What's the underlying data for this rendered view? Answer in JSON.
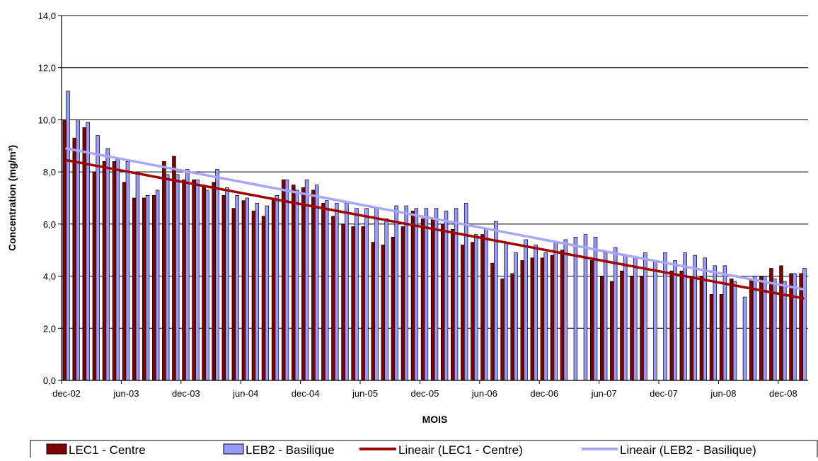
{
  "chart_data": {
    "type": "bar",
    "title": "",
    "xlabel": "MOIS",
    "ylabel": "Concentration (mg/m³)",
    "ylim": [
      0,
      14
    ],
    "yticks": [
      "0,0",
      "2,0",
      "4,0",
      "6,0",
      "8,0",
      "10,0",
      "12,0",
      "14,0"
    ],
    "grid": true,
    "legend_position": "bottom",
    "x_tick_labels": [
      "dec-02",
      "jun-03",
      "dec-03",
      "jun-04",
      "dec-04",
      "jun-05",
      "dec-05",
      "jun-06",
      "dec-06",
      "jun-07",
      "dec-07",
      "jun-08",
      "dec-08"
    ],
    "x_tick_every": 6,
    "series": [
      {
        "name": "LEC1 - Centre",
        "color": "#800000",
        "values": [
          10.0,
          9.3,
          9.7,
          8.0,
          8.4,
          8.4,
          7.6,
          7.0,
          7.0,
          7.1,
          8.4,
          8.6,
          7.7,
          7.7,
          7.5,
          7.6,
          7.1,
          6.6,
          6.9,
          6.5,
          6.3,
          7.0,
          7.7,
          7.5,
          7.4,
          7.3,
          6.8,
          6.3,
          6.0,
          5.9,
          5.9,
          5.3,
          5.2,
          5.5,
          5.9,
          6.5,
          6.2,
          6.2,
          6.0,
          5.8,
          5.2,
          5.3,
          5.6,
          4.5,
          3.9,
          4.1,
          4.6,
          4.7,
          4.7,
          4.8,
          5.0,
          null,
          null,
          4.6,
          4.0,
          3.8,
          4.2,
          4.0,
          4.0,
          null,
          null,
          4.2,
          4.2,
          3.9,
          4.0,
          3.3,
          3.3,
          3.9,
          null,
          3.9,
          4.0,
          4.3,
          4.4,
          4.1,
          4.1
        ],
        "trend_name": "Lineair (LEC1 - Centre)",
        "trend_color": "#A00000",
        "trend": [
          8.45,
          3.15
        ]
      },
      {
        "name": "LEB2 - Basilique",
        "color": "#9999FF",
        "values": [
          11.1,
          10.0,
          9.9,
          9.4,
          8.9,
          8.5,
          8.4,
          8.0,
          7.1,
          7.3,
          7.9,
          7.9,
          8.1,
          7.7,
          7.3,
          8.1,
          7.4,
          7.1,
          7.0,
          6.8,
          6.7,
          7.1,
          7.7,
          7.3,
          7.7,
          7.5,
          6.9,
          6.8,
          6.8,
          6.6,
          6.6,
          6.6,
          6.2,
          6.7,
          6.7,
          6.6,
          6.6,
          6.6,
          6.5,
          6.6,
          6.8,
          5.6,
          5.8,
          6.1,
          5.3,
          4.9,
          5.4,
          5.2,
          4.9,
          5.3,
          5.4,
          5.5,
          5.6,
          5.5,
          4.9,
          5.1,
          4.8,
          4.7,
          4.9,
          4.6,
          4.9,
          4.6,
          4.9,
          4.8,
          4.7,
          4.4,
          4.4,
          3.8,
          3.2,
          4.0,
          4.0,
          3.9,
          3.8,
          4.1,
          4.3
        ],
        "trend_name": "Lineair (LEB2 - Basilique)",
        "trend_color": "#A6A6FF",
        "trend": [
          8.9,
          3.5
        ]
      }
    ]
  }
}
